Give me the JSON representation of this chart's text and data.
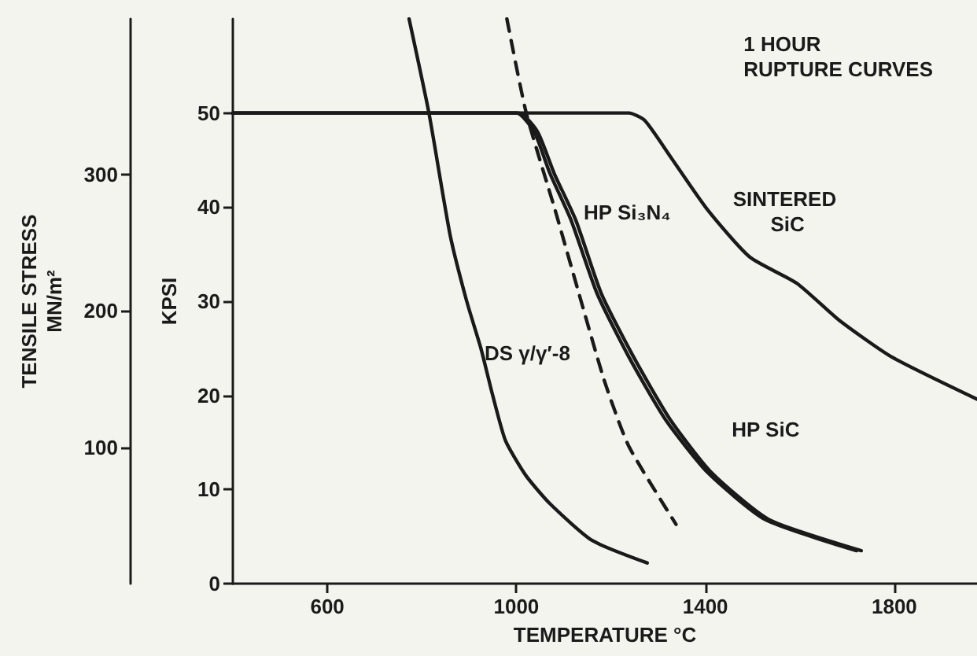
{
  "chart_data": {
    "type": "line",
    "xlabel": "TEMPERATURE °C",
    "ylabel": "KPSI",
    "y2label": "TENSILE STRESS\nMN/m²",
    "annotations": [
      "1 HOUR\nRUPTURE CURVES"
    ],
    "xlim": [
      400,
      1975
    ],
    "xticks": [
      600,
      1000,
      1400,
      1800
    ],
    "ylim": [
      0,
      60
    ],
    "yticks": [
      0,
      10,
      20,
      30,
      40,
      50
    ],
    "y2lim": [
      0,
      414
    ],
    "y2ticks": [
      100,
      200,
      300
    ],
    "grid": false,
    "legend": false,
    "marker": "none",
    "series": [
      {
        "color": "#1a1a1a",
        "line_style": "solid",
        "x": [
          773,
          815,
          860,
          895,
          925,
          950,
          977,
          1020,
          1071,
          1160,
          1277
        ],
        "values": [
          60,
          50,
          37,
          30,
          25,
          20,
          15.2,
          11.5,
          8.5,
          4.6,
          2.2
        ]
      },
      {
        "name": "DS γ/γ′-8",
        "color": "#1a1a1a",
        "line_style": "dashed",
        "x": [
          980,
          1021,
          1082,
          1144,
          1188,
          1238,
          1338
        ],
        "values": [
          60,
          50,
          39.7,
          28.8,
          21.3,
          14.6,
          6.3
        ]
      },
      {
        "name": "HP Si₃N₄",
        "color": "#1a1a1a",
        "line_style": "solid",
        "x": [
          400,
          1000,
          1038,
          1071,
          1116,
          1171,
          1238,
          1316,
          1405,
          1527,
          1720
        ],
        "values": [
          50,
          50,
          48,
          43.6,
          38.6,
          30.8,
          24.1,
          17.4,
          11.8,
          6.8,
          3.5
        ]
      },
      {
        "name": "HP SiC",
        "color": "#1a1a1a",
        "line_style": "solid",
        "x": [
          400,
          1005,
          1045,
          1080,
          1126,
          1180,
          1248,
          1326,
          1413,
          1535,
          1730
        ],
        "values": [
          50,
          50,
          48,
          43.6,
          38.6,
          30.8,
          24.1,
          17.4,
          11.8,
          6.8,
          3.5
        ]
      },
      {
        "name": "SINTERED SiC",
        "color": "#1a1a1a",
        "line_style": "solid",
        "x": [
          400,
          1238,
          1272,
          1327,
          1405,
          1494,
          1594,
          1683,
          1794,
          1975
        ],
        "values": [
          50,
          50,
          49.2,
          45.3,
          39.7,
          34.7,
          31.9,
          28,
          24.1,
          19.6
        ]
      }
    ]
  }
}
